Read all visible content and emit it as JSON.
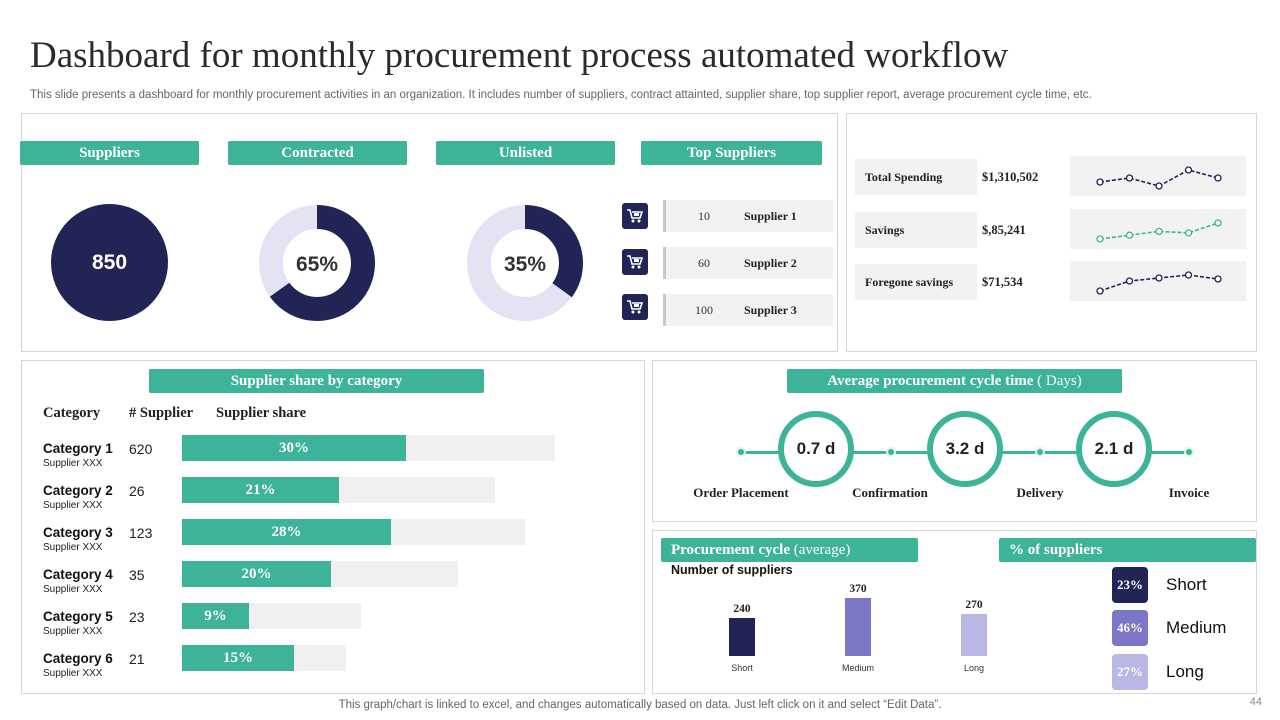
{
  "header": {
    "title": "Dashboard for monthly procurement process automated workflow",
    "subtitle": "This slide presents a dashboard for monthly procurement activities in an organization. It includes number of suppliers, contract attainted, supplier share, top supplier report, average procurement cycle time, etc."
  },
  "kpis": {
    "suppliers": {
      "label": "Suppliers",
      "value": "850"
    },
    "contracted": {
      "label": "Contracted",
      "value": "65%",
      "fraction": 0.65
    },
    "unlisted": {
      "label": "Unlisted",
      "value": "35%",
      "fraction": 0.35
    },
    "colors": {
      "dark": "#232456",
      "light": "#e3e3f3",
      "accent": "#3db39a"
    }
  },
  "top_suppliers": {
    "label": "Top Suppliers",
    "icon": "cart-icon",
    "rows": [
      {
        "count": "10",
        "name": "Supplier 1"
      },
      {
        "count": "60",
        "name": "Supplier 2"
      },
      {
        "count": "100",
        "name": "Supplier 3"
      }
    ]
  },
  "spending": {
    "rows": [
      {
        "label": "Total Spending",
        "value": "$1,310,502",
        "trend": [
          3,
          4,
          2,
          6,
          4
        ],
        "color": "#232456"
      },
      {
        "label": "Savings",
        "value": "$,85,241",
        "trend": [
          1,
          2,
          3,
          2.6,
          5.2
        ],
        "color": "#3db39a"
      },
      {
        "label": "Foregone savings",
        "value": "$71,534",
        "trend": [
          1,
          3,
          3.6,
          4.2,
          3.4
        ],
        "color": "#232456"
      }
    ]
  },
  "supplier_share": {
    "label": "Supplier share by category",
    "headers": {
      "category": "Category",
      "count": "# Supplier",
      "share": "Supplier share"
    },
    "rows": [
      {
        "name": "Category 1",
        "sub": "Supplier XXX",
        "count": "620",
        "share": "30%",
        "share_value": 0.3,
        "track": 1.0
      },
      {
        "name": "Category 2",
        "sub": "Supplier XXX",
        "count": "26",
        "share": "21%",
        "share_value": 0.21,
        "track": 0.84
      },
      {
        "name": "Category 3",
        "sub": "Supplier XXX",
        "count": "123",
        "share": "28%",
        "share_value": 0.28,
        "track": 0.92
      },
      {
        "name": "Category 4",
        "sub": "Supplier XXX",
        "count": "35",
        "share": "20%",
        "share_value": 0.2,
        "track": 0.74
      },
      {
        "name": "Category 5",
        "sub": "Supplier XXX",
        "count": "23",
        "share": "9%",
        "share_value": 0.09,
        "track": 0.48
      },
      {
        "name": "Category 6",
        "sub": "Supplier XXX",
        "count": "21",
        "share": "15%",
        "share_value": 0.15,
        "track": 0.44
      }
    ]
  },
  "cycle_time": {
    "label_bold": "Average procurement cycle time",
    "label_light": "( Days)",
    "steps": [
      "Order Placement",
      "Confirmation",
      "Delivery",
      "Invoice"
    ],
    "durations": [
      "0.7 d",
      "3.2 d",
      "2.1 d"
    ]
  },
  "procurement_cycle": {
    "label_bold": "Procurement cycle",
    "label_light": "(average)",
    "ylabel": "Number of suppliers",
    "chart_data": {
      "type": "bar",
      "title": "Procurement cycle (average)",
      "xlabel": "",
      "ylabel": "Number of suppliers",
      "categories": [
        "Short",
        "Medium",
        "Long"
      ],
      "values": [
        240,
        370,
        270
      ],
      "value_labels": [
        "240",
        "370",
        "270"
      ],
      "colors": [
        "#232456",
        "#7b76c6",
        "#b9b8e4"
      ],
      "ylim": [
        0,
        400
      ]
    }
  },
  "pct_suppliers": {
    "label": "% of  suppliers",
    "items": [
      {
        "pct": "23%",
        "label": "Short",
        "color": "#232456"
      },
      {
        "pct": "46%",
        "label": "Medium",
        "color": "#7b76c6"
      },
      {
        "pct": "27%",
        "label": "Long",
        "color": "#b9b8e4"
      }
    ]
  },
  "footer": {
    "note": "This graph/chart is linked to excel,  and changes automatically based on data. Just left click on it and select “Edit Data”.",
    "page": "44"
  }
}
